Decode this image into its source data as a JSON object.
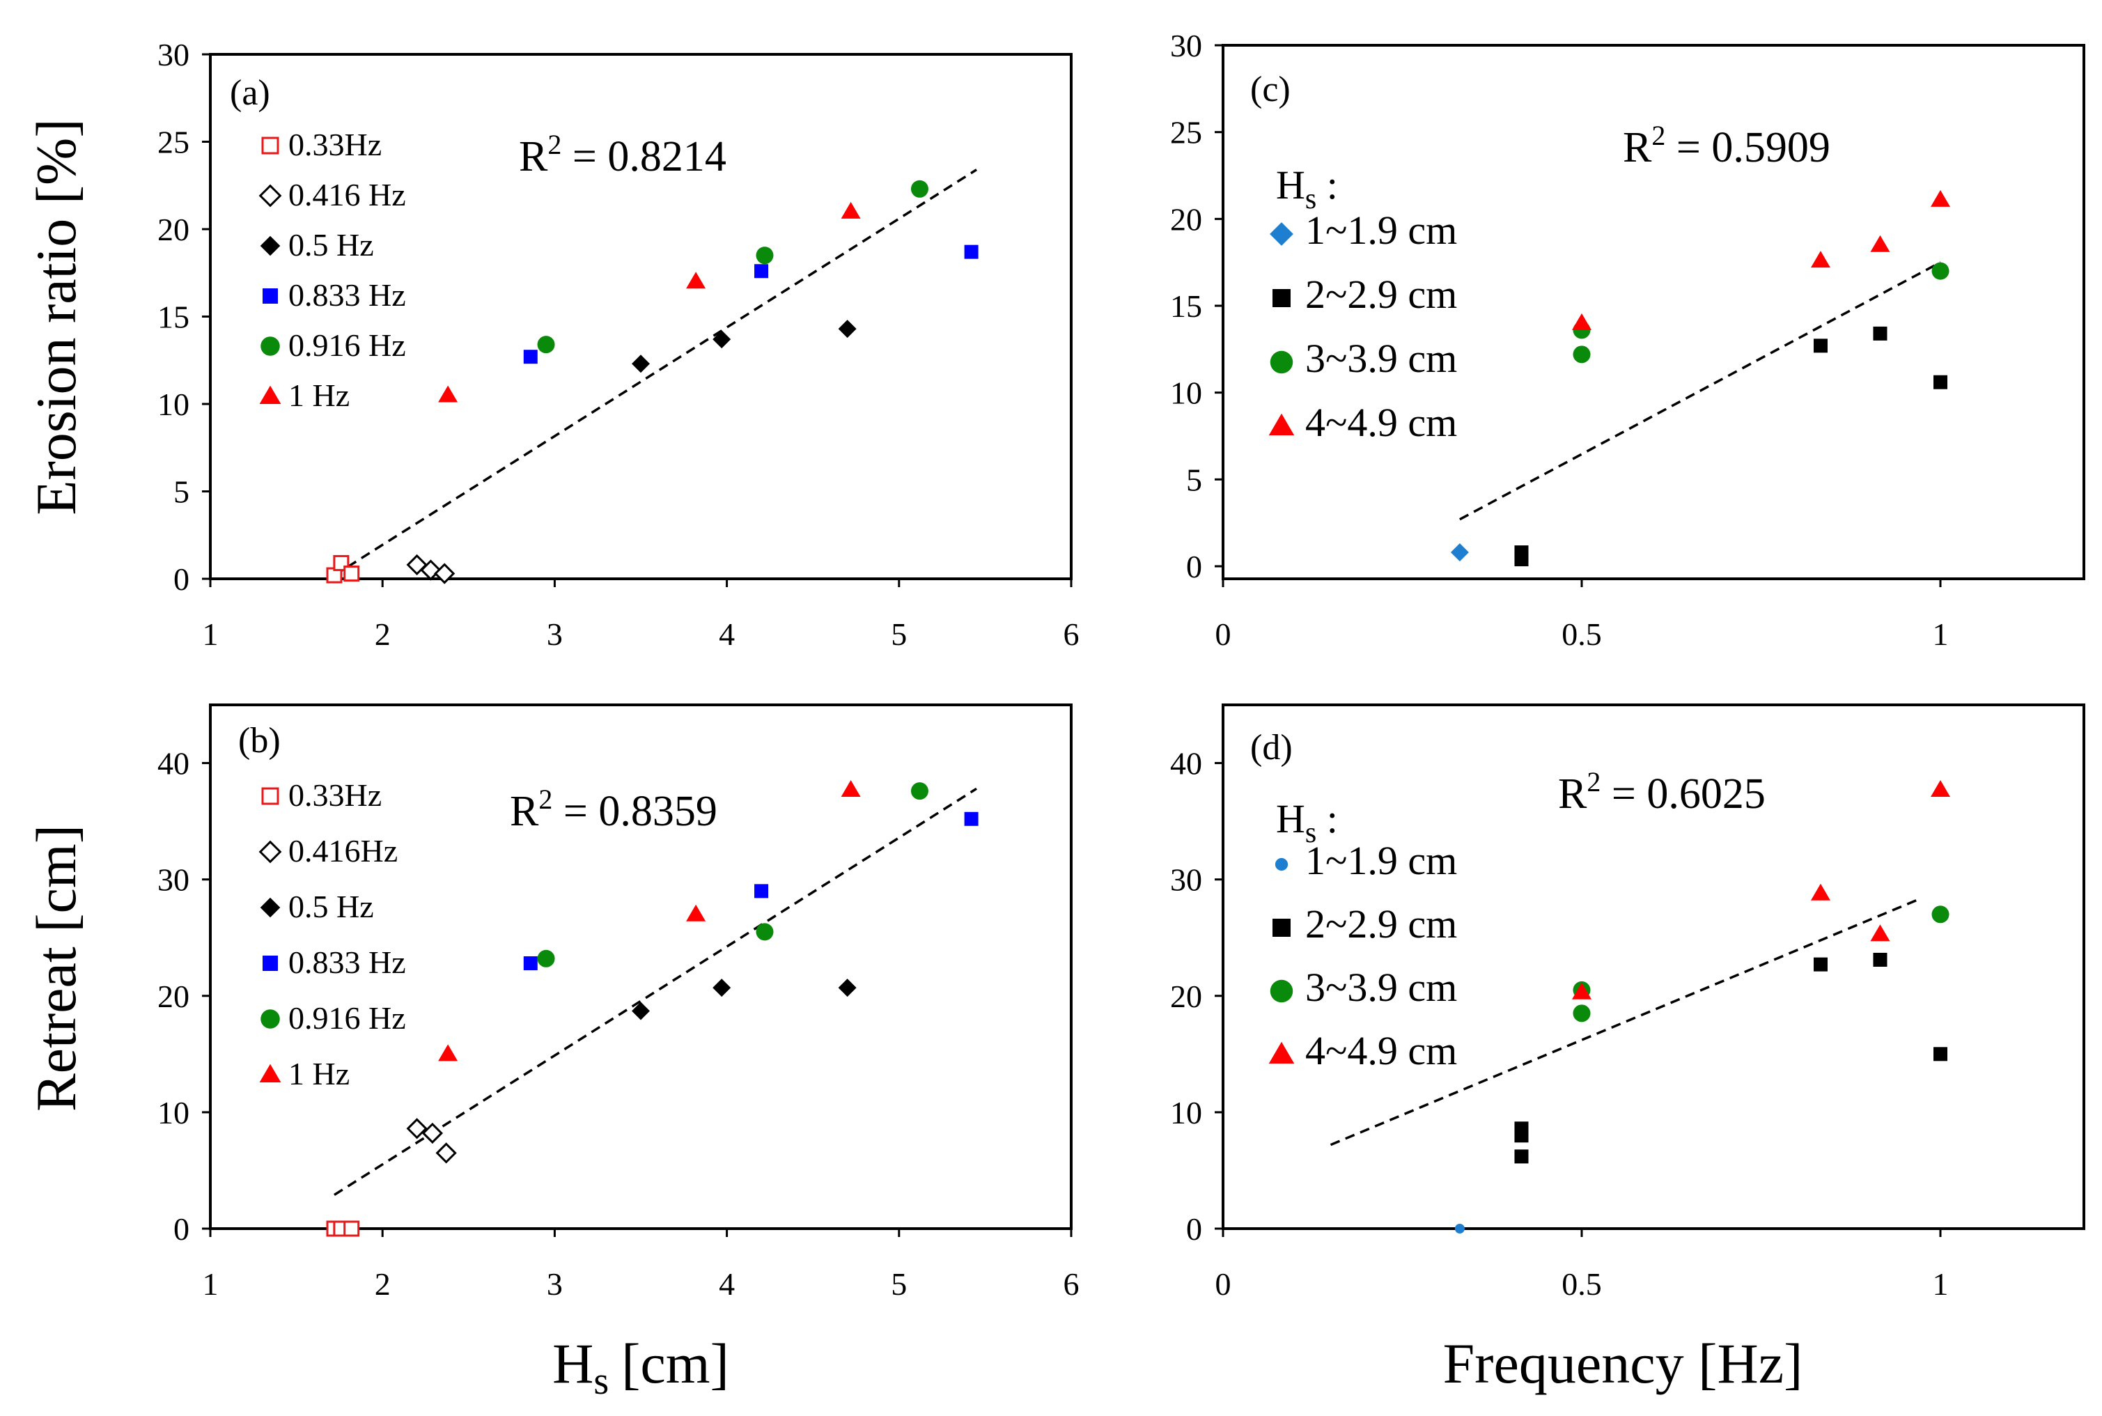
{
  "chart_data": [
    {
      "panel": "(a)",
      "type": "scatter",
      "xlabel": "H",
      "xlabel_sub": "s",
      "xlabel_unit": "[cm]",
      "ylabel": "Erosion ratio [%]",
      "xlim": [
        1,
        6
      ],
      "ylim": [
        0,
        30
      ],
      "xticks": [
        "1",
        "2",
        "3",
        "4",
        "5",
        "6"
      ],
      "yticks": [
        "0",
        "5",
        "10",
        "15",
        "20",
        "25",
        "30"
      ],
      "r2_base": "R",
      "r2_sup": "2",
      "r2_value": " = 0.8214",
      "legend_title": "",
      "series": [
        {
          "name": "0.33Hz",
          "marker": "square-open",
          "color": "#e8191a",
          "points": [
            [
              1.72,
              0.2
            ],
            [
              1.76,
              0.9
            ],
            [
              1.82,
              0.3
            ]
          ]
        },
        {
          "name": "0.416 Hz",
          "marker": "diamond-open",
          "color": "#000000",
          "points": [
            [
              2.2,
              0.8
            ],
            [
              2.28,
              0.5
            ],
            [
              2.36,
              0.3
            ]
          ]
        },
        {
          "name": "0.5 Hz",
          "marker": "diamond",
          "color": "#000000",
          "points": [
            [
              3.5,
              12.3
            ],
            [
              3.97,
              13.7
            ],
            [
              4.7,
              14.3
            ]
          ]
        },
        {
          "name": "0.833 Hz",
          "marker": "square",
          "color": "#0000ff",
          "points": [
            [
              2.86,
              12.7
            ],
            [
              4.2,
              17.6
            ],
            [
              5.42,
              18.7
            ]
          ]
        },
        {
          "name": "0.916 Hz",
          "marker": "circle",
          "color": "#0a8a0a",
          "points": [
            [
              2.95,
              13.4
            ],
            [
              4.22,
              18.5
            ],
            [
              5.12,
              22.3
            ]
          ]
        },
        {
          "name": "1 Hz",
          "marker": "triangle",
          "color": "#ff0000",
          "points": [
            [
              2.38,
              10.5
            ],
            [
              3.82,
              17.0
            ],
            [
              4.72,
              21.0
            ]
          ]
        }
      ],
      "trendline": [
        [
          1.72,
          0.2
        ],
        [
          5.45,
          23.4
        ]
      ]
    },
    {
      "panel": "(b)",
      "type": "scatter",
      "xlabel": "H",
      "xlabel_sub": "s",
      "xlabel_unit": "[cm]",
      "ylabel": "Retreat [cm]",
      "xlim": [
        1,
        6
      ],
      "ylim": [
        0,
        45
      ],
      "xticks": [
        "1",
        "2",
        "3",
        "4",
        "5",
        "6"
      ],
      "yticks": [
        "0",
        "10",
        "20",
        "30",
        "40"
      ],
      "r2_base": "R",
      "r2_sup": "2",
      "r2_value": " = 0.8359",
      "legend_title": "",
      "series": [
        {
          "name": "0.33Hz",
          "marker": "square-open",
          "color": "#e8191a",
          "points": [
            [
              1.72,
              0
            ],
            [
              1.76,
              0
            ],
            [
              1.82,
              0
            ]
          ]
        },
        {
          "name": "0.416Hz",
          "marker": "diamond-open",
          "color": "#000000",
          "points": [
            [
              2.2,
              8.6
            ],
            [
              2.29,
              8.2
            ],
            [
              2.37,
              6.5
            ]
          ]
        },
        {
          "name": "0.5 Hz",
          "marker": "diamond",
          "color": "#000000",
          "points": [
            [
              3.5,
              18.7
            ],
            [
              3.97,
              20.7
            ],
            [
              4.7,
              20.7
            ]
          ]
        },
        {
          "name": "0.833 Hz",
          "marker": "square",
          "color": "#0000ff",
          "points": [
            [
              2.86,
              22.8
            ],
            [
              4.2,
              29.0
            ],
            [
              5.42,
              35.2
            ]
          ]
        },
        {
          "name": "0.916 Hz",
          "marker": "circle",
          "color": "#0a8a0a",
          "points": [
            [
              2.95,
              23.2
            ],
            [
              4.22,
              25.5
            ],
            [
              5.12,
              37.6
            ]
          ]
        },
        {
          "name": "1 Hz",
          "marker": "triangle",
          "color": "#ff0000",
          "points": [
            [
              2.38,
              15.0
            ],
            [
              3.82,
              27.0
            ],
            [
              4.72,
              37.7
            ]
          ]
        }
      ],
      "trendline": [
        [
          1.72,
          2.9
        ],
        [
          5.45,
          37.8
        ]
      ]
    },
    {
      "panel": "(c)",
      "type": "scatter",
      "xlabel": "Frequency [Hz]",
      "ylabel": "",
      "xlim": [
        0,
        1.2
      ],
      "ylim": [
        0,
        30
      ],
      "xticks": [
        "0",
        "0.5",
        "1"
      ],
      "yticks": [
        "0",
        "5",
        "10",
        "15",
        "20",
        "25",
        "30"
      ],
      "r2_base": "R",
      "r2_sup": "2",
      "r2_value": " = 0.5909",
      "legend_title": "H",
      "legend_title_sub": "s",
      "legend_title_colon": " :",
      "series": [
        {
          "name": "1~1.9 cm",
          "marker": "diamond",
          "color": "#1e7fd0",
          "points": [
            [
              0.33,
              0.8
            ]
          ]
        },
        {
          "name": "2~2.9 cm",
          "marker": "square",
          "color": "#000000",
          "points": [
            [
              0.416,
              0.8
            ],
            [
              0.416,
              0.4
            ],
            [
              0.833,
              12.7
            ],
            [
              0.916,
              13.4
            ],
            [
              1.0,
              10.6
            ]
          ]
        },
        {
          "name": "3~3.9 cm",
          "marker": "circle",
          "color": "#0a8a0a",
          "points": [
            [
              0.5,
              13.6
            ],
            [
              0.5,
              12.2
            ],
            [
              1.0,
              17.0
            ]
          ]
        },
        {
          "name": "4~4.9 cm",
          "marker": "triangle",
          "color": "#ff0000",
          "points": [
            [
              0.5,
              14.0
            ],
            [
              0.833,
              17.6
            ],
            [
              0.916,
              18.5
            ],
            [
              1.0,
              21.1
            ]
          ]
        }
      ],
      "trendline": [
        [
          0.33,
          2.7
        ],
        [
          1.0,
          17.5
        ]
      ]
    },
    {
      "panel": "(d)",
      "type": "scatter",
      "xlabel": "Frequency [Hz]",
      "ylabel": "",
      "xlim": [
        0,
        1.2
      ],
      "ylim": [
        0,
        45
      ],
      "xticks": [
        "0",
        "0.5",
        "1"
      ],
      "yticks": [
        "0",
        "10",
        "20",
        "30",
        "40"
      ],
      "r2_base": "R",
      "r2_sup": "2",
      "r2_value": " = 0.6025",
      "legend_title": "H",
      "legend_title_sub": "s",
      "legend_title_colon": " :",
      "series": [
        {
          "name": "1~1.9 cm",
          "marker": "circle-small",
          "color": "#1e7fd0",
          "points": [
            [
              0.33,
              0
            ]
          ]
        },
        {
          "name": "2~2.9 cm",
          "marker": "square",
          "color": "#000000",
          "points": [
            [
              0.416,
              8.6
            ],
            [
              0.416,
              8.0
            ],
            [
              0.416,
              6.2
            ],
            [
              0.833,
              22.7
            ],
            [
              0.916,
              23.1
            ],
            [
              1.0,
              15.0
            ]
          ]
        },
        {
          "name": "3~3.9 cm",
          "marker": "circle",
          "color": "#0a8a0a",
          "points": [
            [
              0.5,
              20.5
            ],
            [
              0.5,
              18.5
            ],
            [
              1.0,
              27.0
            ]
          ]
        },
        {
          "name": "4~4.9 cm",
          "marker": "triangle",
          "color": "#ff0000",
          "points": [
            [
              0.5,
              20.3
            ],
            [
              0.833,
              28.8
            ],
            [
              0.916,
              25.3
            ],
            [
              1.0,
              37.7
            ]
          ]
        }
      ],
      "trendline": [
        [
          0.15,
          7.2
        ],
        [
          0.97,
          28.3
        ]
      ]
    }
  ]
}
